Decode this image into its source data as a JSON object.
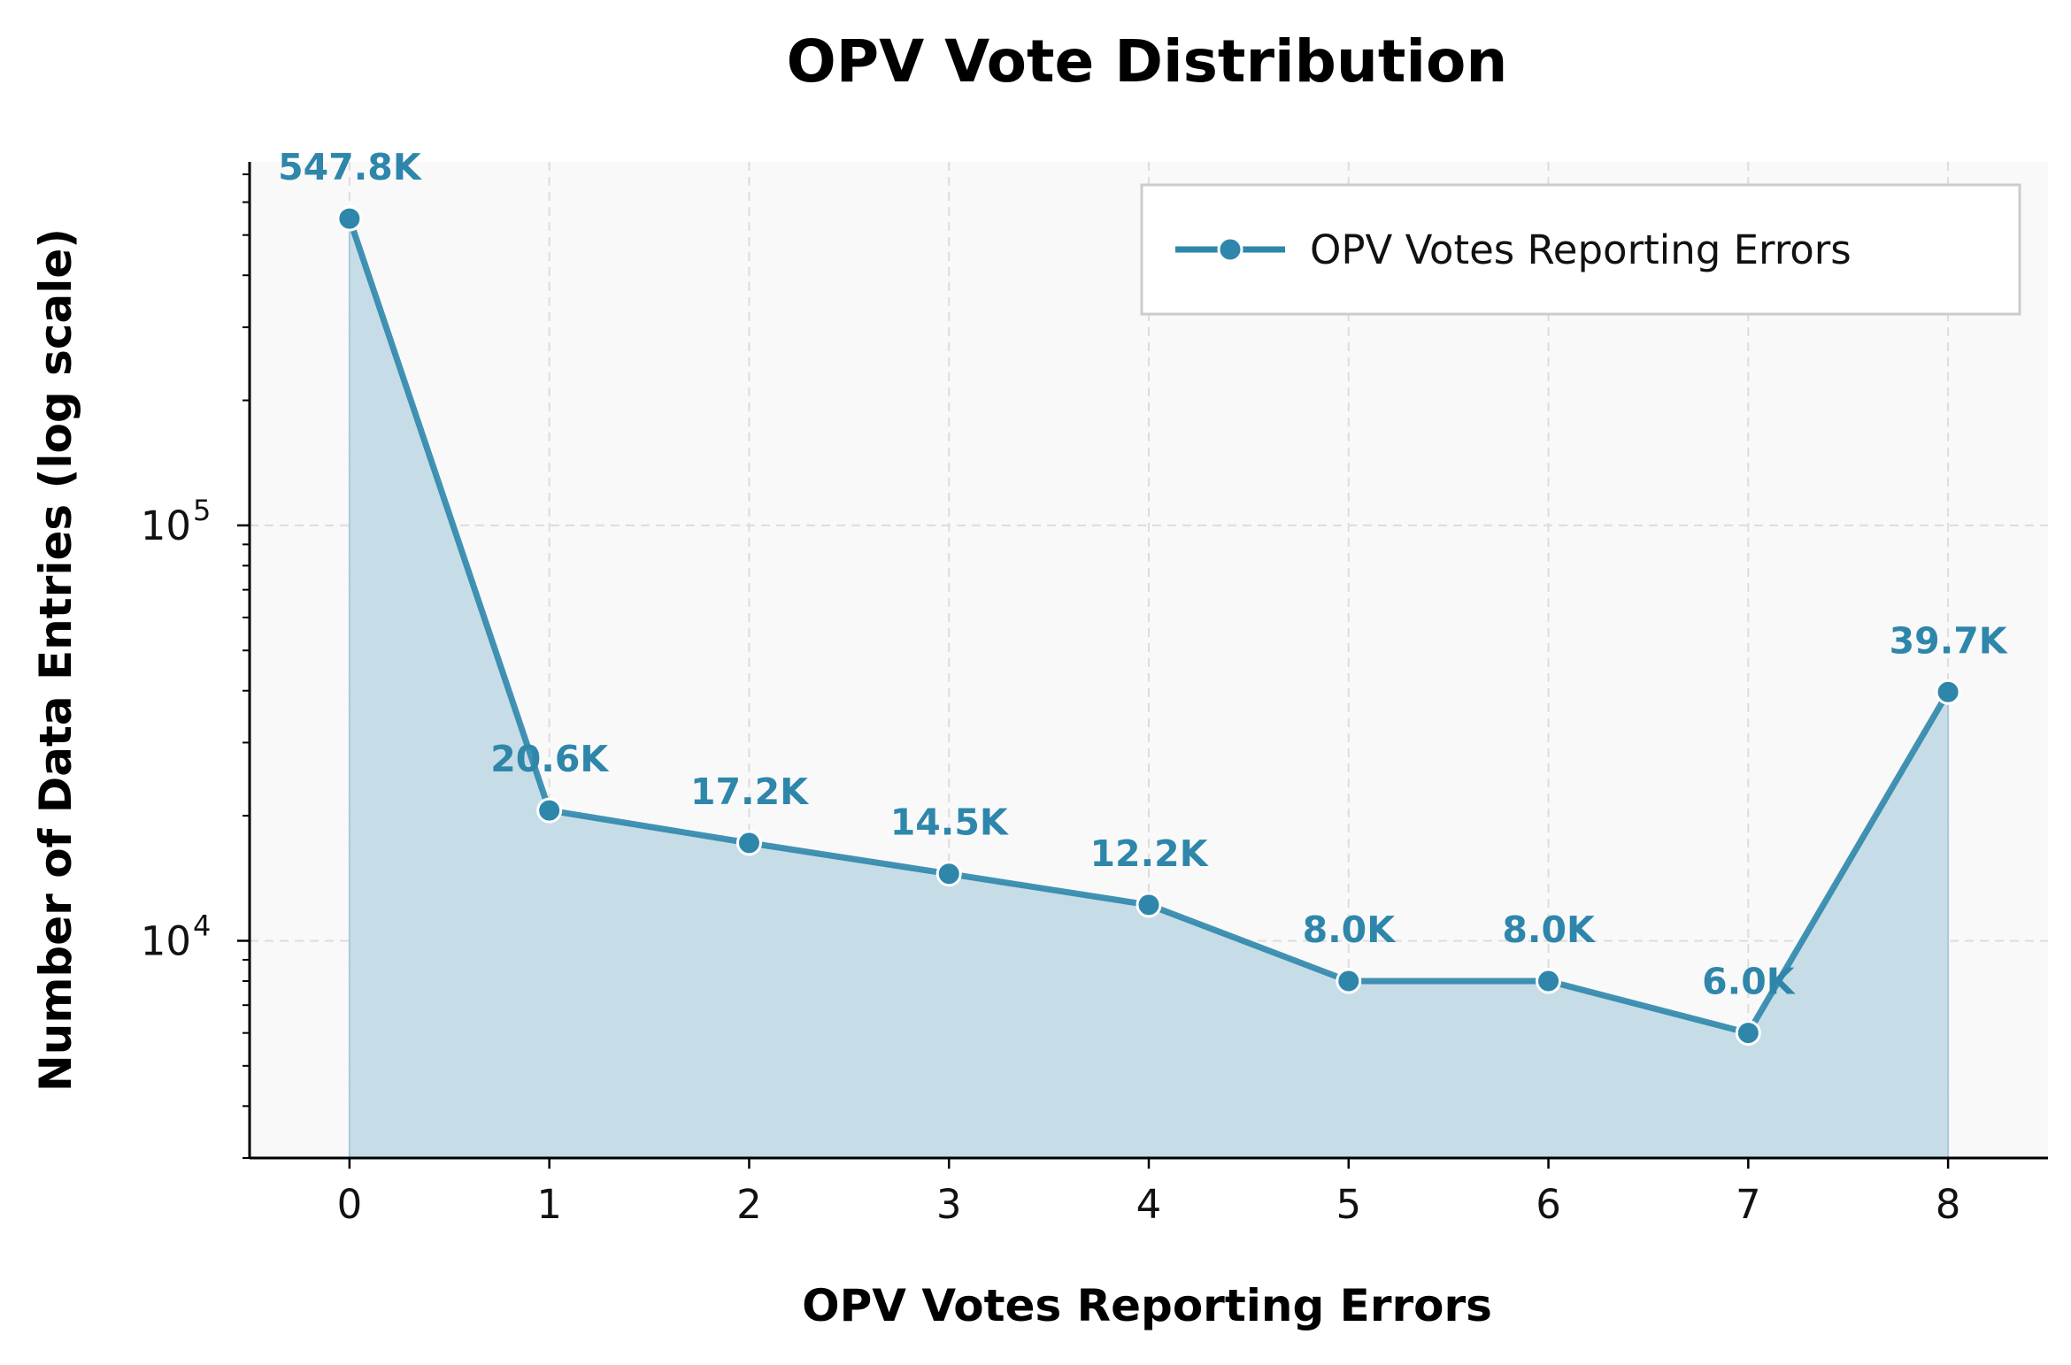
{
  "chart_data": {
    "type": "line",
    "title": "OPV Vote Distribution",
    "xlabel": "OPV Votes Reporting Errors",
    "ylabel": "Number of Data Entries (log scale)",
    "yscale": "log",
    "ylim": [
      3000,
      750000
    ],
    "xlim": [
      -0.5,
      8.5
    ],
    "grid": true,
    "legend_position": "top-right",
    "x": [
      0,
      1,
      2,
      3,
      4,
      5,
      6,
      7,
      8
    ],
    "x_tick_labels": [
      "0",
      "1",
      "2",
      "3",
      "4",
      "5",
      "6",
      "7",
      "8"
    ],
    "y_major_ticks": [
      {
        "value": 10000,
        "base": "10",
        "exp": "4"
      },
      {
        "value": 100000,
        "base": "10",
        "exp": "5"
      }
    ],
    "series": [
      {
        "name": "OPV Votes Reporting Errors",
        "values": [
          547800,
          20600,
          17200,
          14500,
          12200,
          8000,
          8000,
          6000,
          39700
        ],
        "labels": [
          "547.8K",
          "20.6K",
          "17.2K",
          "14.5K",
          "12.2K",
          "8.0K",
          "8.0K",
          "6.0K",
          "39.7K"
        ],
        "color": "#2e86ab",
        "fill_color": "#c6dce7"
      }
    ]
  }
}
